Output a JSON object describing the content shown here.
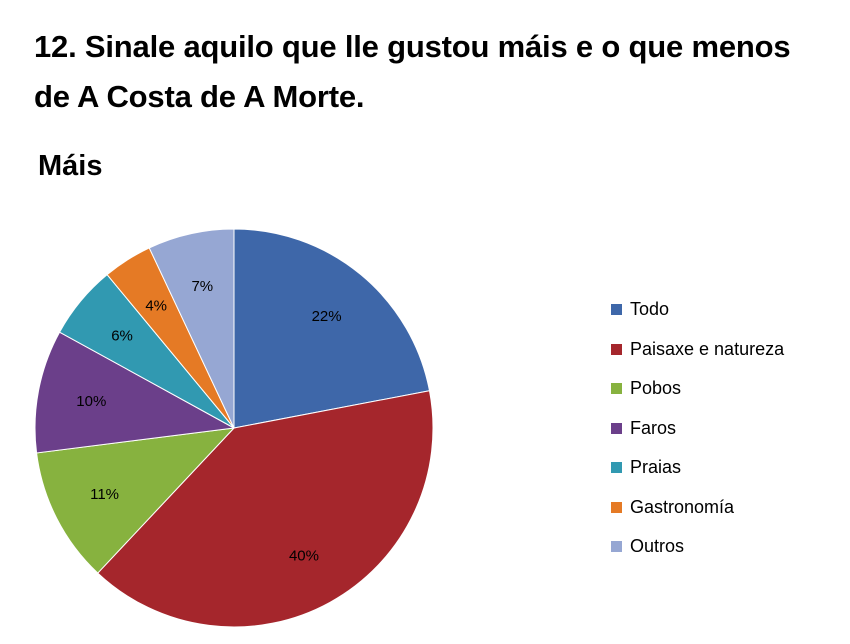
{
  "question": "12. Sinale aquilo que lle gustou máis e o que menos de A Costa de A Morte.",
  "chart_data": {
    "type": "pie",
    "title": "Máis",
    "categories": [
      "Todo",
      "Paisaxe e natureza",
      "Pobos",
      "Faros",
      "Praias",
      "Gastronomía",
      "Outros"
    ],
    "values": [
      22,
      40,
      11,
      10,
      6,
      4,
      7
    ],
    "data_labels": [
      "22%",
      "40%",
      "11%",
      "10%",
      "6%",
      "4%",
      "7%"
    ],
    "colors": [
      "#3e67a9",
      "#a5262c",
      "#87b23f",
      "#6b3f8a",
      "#3199b1",
      "#e57a25",
      "#96a7d3"
    ],
    "legend_position": "right"
  }
}
